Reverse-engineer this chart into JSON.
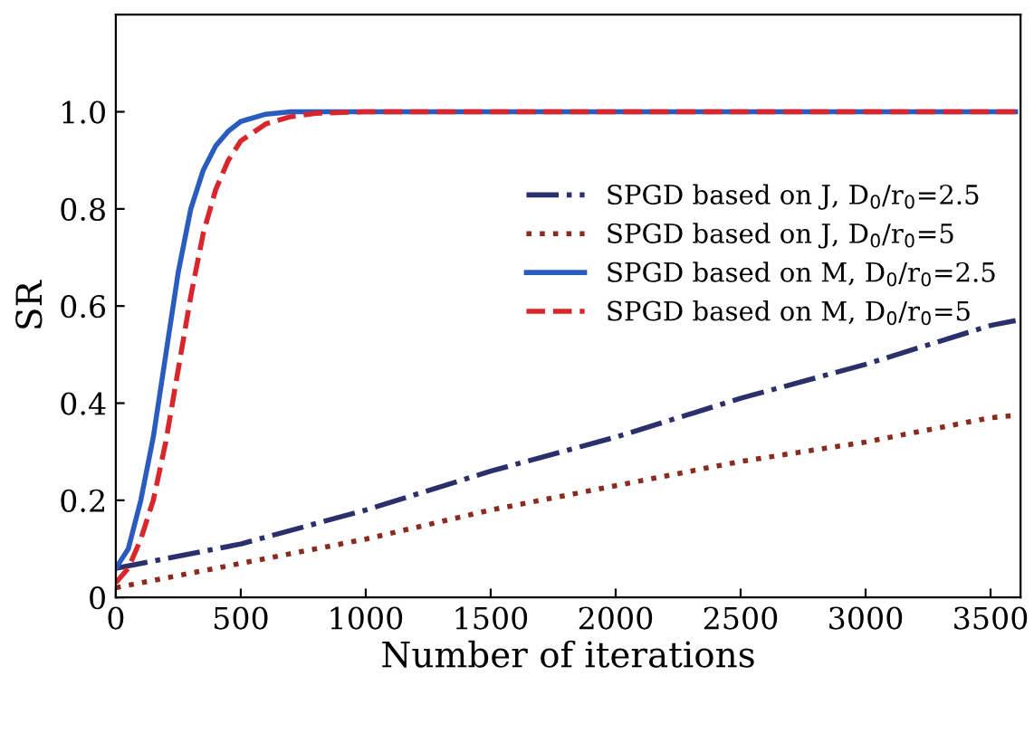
{
  "chart_data": {
    "type": "line",
    "xlabel": "Number of iterations",
    "ylabel": "SR",
    "xlim": [
      0,
      3620
    ],
    "ylim": [
      0,
      1.2
    ],
    "xticks": [
      0,
      500,
      1000,
      1500,
      2000,
      2500,
      3000,
      3500
    ],
    "yticks": [
      0,
      0.2,
      0.4,
      0.6,
      0.8,
      {
        "value": 1.0,
        "label": "1.0"
      }
    ],
    "grid": false,
    "legend": "top right",
    "marker": "none",
    "series": [
      {
        "name": "SPGD based on J, D$_{0}$/r$_{0}$=2.5",
        "color": "#2b2f6b",
        "line_style": "dashdot",
        "x": [
          0,
          500,
          1000,
          1500,
          2000,
          2500,
          3000,
          3500,
          3600
        ],
        "values": [
          0.06,
          0.11,
          0.18,
          0.26,
          0.33,
          0.41,
          0.48,
          0.56,
          0.57
        ]
      },
      {
        "name": "SPGD based on J, D$_{0}$/r$_{0}$=5",
        "color": "#8b2a1e",
        "line_style": "dotted",
        "x": [
          0,
          500,
          1000,
          1500,
          2000,
          2500,
          3000,
          3500,
          3600
        ],
        "values": [
          0.02,
          0.07,
          0.12,
          0.18,
          0.23,
          0.28,
          0.32,
          0.37,
          0.375
        ]
      },
      {
        "name": "SPGD based on M, D$_{0}$/r$_{0}$=2.5",
        "color": "#2a5cbf",
        "line_style": "solid",
        "x": [
          0,
          50,
          100,
          150,
          200,
          250,
          300,
          350,
          400,
          450,
          500,
          600,
          700,
          3600
        ],
        "values": [
          0.06,
          0.1,
          0.2,
          0.33,
          0.5,
          0.67,
          0.8,
          0.88,
          0.93,
          0.96,
          0.98,
          0.995,
          1.0,
          1.0
        ]
      },
      {
        "name": "SPGD based on M, D$_{0}$/r$_{0}$=5",
        "color": "#d8262b",
        "line_style": "dashed",
        "x": [
          0,
          50,
          100,
          150,
          200,
          250,
          300,
          350,
          400,
          450,
          500,
          600,
          700,
          800,
          1000,
          3600
        ],
        "values": [
          0.03,
          0.06,
          0.12,
          0.2,
          0.32,
          0.47,
          0.62,
          0.75,
          0.84,
          0.9,
          0.94,
          0.975,
          0.99,
          0.997,
          1.0,
          1.0
        ]
      }
    ]
  }
}
